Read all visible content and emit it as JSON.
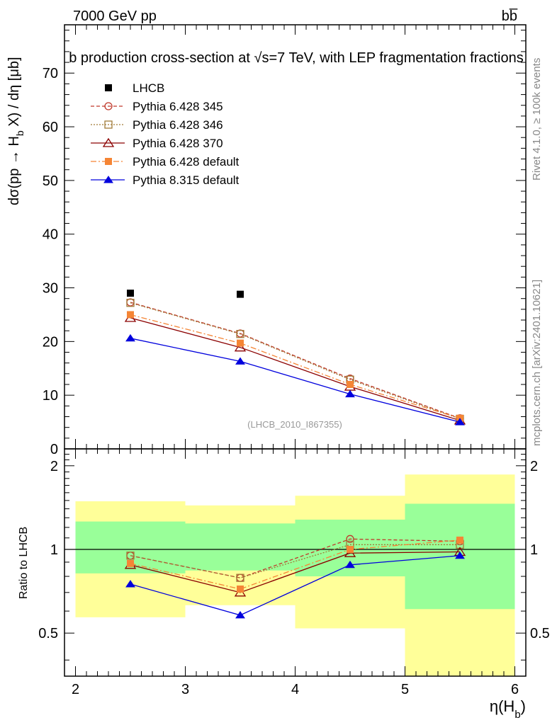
{
  "header": {
    "energy_label": "7000 GeV pp",
    "process_label": "bb̅",
    "title": "b production cross-section at √s=7 TeV, with LEP fragmentation fractions",
    "watermark_id": "(LHCB_2010_I867355)",
    "side_rivet": "Rivet 4.1.0, ≥ 100k events",
    "side_mcplots": "mcplots.cern.ch [arXiv:2401.10621]"
  },
  "chart_data": [
    {
      "type": "line",
      "panel": "main",
      "title": "b production cross-section at √s=7 TeV, with LEP fragmentation fractions",
      "ylabel": "dσ(pp → H_b X) / dη [μb]",
      "xlim": [
        1.9,
        6.1
      ],
      "ylim": [
        0,
        79
      ],
      "yticks": [
        0,
        10,
        20,
        30,
        40,
        50,
        60,
        70
      ],
      "x": [
        2.5,
        3.5,
        4.5,
        5.5
      ],
      "data": {
        "name": "LHCB",
        "values": [
          29.0,
          28.8,
          null,
          null
        ]
      },
      "series": [
        {
          "name": "Pythia 6.428 345",
          "color": "#c0392b",
          "marker": "circle-open",
          "dash": "5,3",
          "values": [
            27.3,
            21.5,
            13.1,
            5.7
          ]
        },
        {
          "name": "Pythia 6.428 346",
          "color": "#a07b38",
          "marker": "square-open",
          "dash": "2,2",
          "values": [
            27.2,
            21.4,
            12.9,
            5.6
          ]
        },
        {
          "name": "Pythia 6.428 370",
          "color": "#8b0000",
          "marker": "triangle-open",
          "dash": "",
          "values": [
            24.4,
            18.9,
            11.6,
            5.3
          ]
        },
        {
          "name": "Pythia 6.428 default",
          "color": "#f58535",
          "marker": "square-filled",
          "dash": "8,3,2,3",
          "values": [
            25.0,
            19.7,
            12.0,
            5.7
          ]
        },
        {
          "name": "Pythia 8.315 default",
          "color": "#0000dd",
          "marker": "triangle-filled",
          "dash": "",
          "values": [
            20.6,
            16.3,
            10.2,
            5.0
          ]
        }
      ]
    },
    {
      "type": "line",
      "panel": "ratio",
      "ylabel": "Ratio to LHCB",
      "xlabel": "η(H_b)",
      "xlim": [
        1.9,
        6.1
      ],
      "ylim": [
        0.35,
        2.3
      ],
      "xticks": [
        2,
        3,
        4,
        5,
        6
      ],
      "yticks": [
        0.5,
        1,
        2
      ],
      "bins": [
        [
          2,
          3
        ],
        [
          3,
          4
        ],
        [
          4,
          5
        ],
        [
          5,
          6
        ]
      ],
      "band_inner": [
        [
          0.82,
          1.26
        ],
        [
          0.84,
          1.24
        ],
        [
          0.8,
          1.28
        ],
        [
          0.61,
          1.46
        ]
      ],
      "band_outer": [
        [
          0.57,
          1.49
        ],
        [
          0.63,
          1.44
        ],
        [
          0.52,
          1.56
        ],
        [
          0.35,
          1.86
        ]
      ],
      "x": [
        2.5,
        3.5,
        4.5,
        5.5
      ],
      "series": [
        {
          "name": "Pythia 6.428 345",
          "color": "#c0392b",
          "marker": "circle-open",
          "dash": "5,3",
          "values": [
            0.95,
            0.79,
            1.09,
            1.07
          ]
        },
        {
          "name": "Pythia 6.428 346",
          "color": "#a07b38",
          "marker": "square-open",
          "dash": "2,2",
          "values": [
            0.95,
            0.79,
            1.04,
            1.04
          ]
        },
        {
          "name": "Pythia 6.428 370",
          "color": "#8b0000",
          "marker": "triangle-open",
          "dash": "",
          "values": [
            0.88,
            0.7,
            0.97,
            0.98
          ]
        },
        {
          "name": "Pythia 6.428 default",
          "color": "#f58535",
          "marker": "square-filled",
          "dash": "8,3,2,3",
          "values": [
            0.89,
            0.72,
            1.0,
            1.08
          ]
        },
        {
          "name": "Pythia 8.315 default",
          "color": "#0000dd",
          "marker": "triangle-filled",
          "dash": "",
          "values": [
            0.75,
            0.58,
            0.88,
            0.95
          ]
        }
      ]
    }
  ]
}
